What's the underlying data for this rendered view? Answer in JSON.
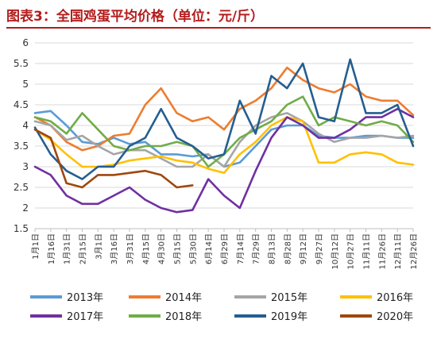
{
  "title": "图表3：全国鸡蛋平均价格（单位：元/斤）",
  "chart_data": {
    "type": "line",
    "title": "图表3：全国鸡蛋平均价格（单位：元/斤）",
    "ylim": [
      1.5,
      6
    ],
    "yticks": [
      "1.5",
      "2",
      "2.5",
      "3",
      "3.5",
      "4",
      "4.5",
      "5",
      "5.5",
      "6"
    ],
    "grid": "horizontal",
    "legend_position": "bottom",
    "categories": [
      "1月1日",
      "1月16日",
      "1月31日",
      "2月15日",
      "3月1日",
      "3月16日",
      "3月31日",
      "4月15日",
      "4月30日",
      "5月15日",
      "5月30日",
      "6月14日",
      "6月29日",
      "7月14日",
      "7月29日",
      "8月13日",
      "8月28日",
      "9月12日",
      "9月27日",
      "10月12日",
      "10月27日",
      "11月11日",
      "11月26日",
      "12月11日",
      "12月26日"
    ],
    "series": [
      {
        "name": "2013年",
        "color": "#5b9bd5",
        "values": [
          4.3,
          4.35,
          4.0,
          3.6,
          3.55,
          3.7,
          3.55,
          3.6,
          3.3,
          3.3,
          3.25,
          3.3,
          3.0,
          3.1,
          3.5,
          3.9,
          4.0,
          4.0,
          3.75,
          3.7,
          3.7,
          3.75,
          3.75,
          3.7,
          3.7
        ]
      },
      {
        "name": "2014年",
        "color": "#ed7d31",
        "values": [
          4.2,
          4.0,
          3.6,
          3.4,
          3.5,
          3.75,
          3.8,
          4.5,
          4.9,
          4.3,
          4.1,
          4.2,
          3.9,
          4.4,
          4.6,
          4.9,
          5.4,
          5.1,
          4.9,
          4.8,
          5.0,
          4.7,
          4.6,
          4.6,
          4.25
        ]
      },
      {
        "name": "2015年",
        "color": "#a5a5a5",
        "values": [
          4.1,
          4.0,
          3.65,
          3.75,
          3.5,
          3.3,
          3.4,
          3.4,
          3.2,
          3.0,
          3.0,
          3.3,
          3.0,
          3.6,
          4.0,
          4.2,
          4.3,
          4.1,
          3.8,
          3.6,
          3.7,
          3.7,
          3.75,
          3.7,
          3.75
        ]
      },
      {
        "name": "2016年",
        "color": "#ffc000",
        "values": [
          3.9,
          3.65,
          3.3,
          3.0,
          3.0,
          3.05,
          3.15,
          3.2,
          3.25,
          3.15,
          3.1,
          2.95,
          2.85,
          3.3,
          3.6,
          4.0,
          4.2,
          4.1,
          3.1,
          3.1,
          3.3,
          3.35,
          3.3,
          3.1,
          3.05
        ]
      },
      {
        "name": "2017年",
        "color": "#7030a0",
        "values": [
          3.0,
          2.8,
          2.3,
          2.1,
          2.1,
          2.3,
          2.5,
          2.2,
          2.0,
          1.9,
          1.95,
          2.7,
          2.3,
          2.0,
          2.9,
          3.7,
          4.2,
          4.0,
          3.7,
          3.7,
          3.9,
          4.2,
          4.2,
          4.4,
          4.2
        ]
      },
      {
        "name": "2018年",
        "color": "#70ad47",
        "values": [
          4.2,
          4.1,
          3.8,
          4.3,
          3.9,
          3.5,
          3.4,
          3.5,
          3.5,
          3.6,
          3.5,
          3.0,
          3.3,
          3.7,
          3.9,
          4.1,
          4.5,
          4.7,
          4.0,
          4.2,
          4.1,
          4.0,
          4.1,
          4.0,
          3.6
        ]
      },
      {
        "name": "2019年",
        "color": "#255e91",
        "values": [
          3.95,
          3.3,
          2.9,
          2.7,
          3.0,
          3.0,
          3.5,
          3.7,
          4.4,
          3.7,
          3.5,
          3.2,
          3.3,
          4.6,
          3.8,
          5.2,
          4.9,
          5.5,
          4.2,
          4.1,
          5.6,
          4.3,
          4.3,
          4.5,
          3.5
        ]
      },
      {
        "name": "2020年",
        "color": "#9e480e",
        "values": [
          3.9,
          3.7,
          2.6,
          2.5,
          2.8,
          2.8,
          2.85,
          2.9,
          2.8,
          2.5,
          2.55,
          null,
          null,
          null,
          null,
          null,
          null,
          null,
          null,
          null,
          null,
          null,
          null,
          null,
          null
        ]
      }
    ]
  }
}
